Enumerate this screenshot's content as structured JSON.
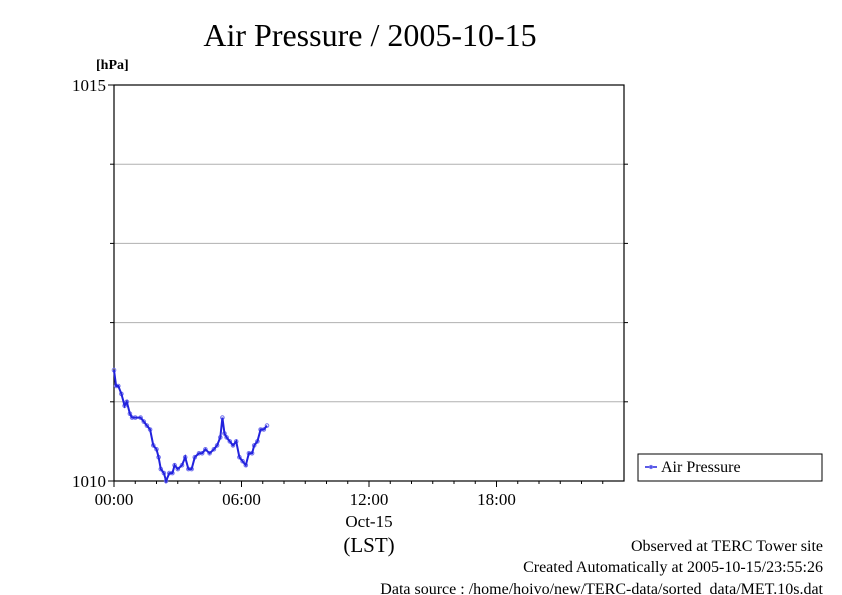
{
  "chart_data": {
    "type": "line",
    "title": "Air Pressure / 2005-10-15",
    "ylabel": "[hPa]",
    "xlabel": "(LST)",
    "date_label": "Oct-15",
    "ylim": [
      1010,
      1015
    ],
    "xlim_hours": [
      0,
      24
    ],
    "y_ticks": [
      {
        "value": 1010,
        "label": "1010"
      },
      {
        "value": 1015,
        "label": "1015"
      }
    ],
    "y_gridlines": [
      1011,
      1012,
      1013,
      1014
    ],
    "x_ticks": [
      {
        "value": 0,
        "label": "00:00"
      },
      {
        "value": 6,
        "label": "06:00"
      },
      {
        "value": 12,
        "label": "12:00"
      },
      {
        "value": 18,
        "label": "18:00"
      }
    ],
    "grid": "horizontal",
    "legend": {
      "position": "right",
      "entries": [
        "Air Pressure"
      ]
    },
    "colors": {
      "series": "#2222dd",
      "points": "#7070ee",
      "grid": "#b0b0b0"
    },
    "series": [
      {
        "name": "Air Pressure",
        "x": [
          0.0,
          0.1,
          0.2,
          0.35,
          0.5,
          0.6,
          0.75,
          0.85,
          1.0,
          1.25,
          1.4,
          1.55,
          1.7,
          1.85,
          2.0,
          2.1,
          2.2,
          2.35,
          2.45,
          2.6,
          2.75,
          2.85,
          3.0,
          3.2,
          3.35,
          3.5,
          3.65,
          3.8,
          4.0,
          4.15,
          4.3,
          4.5,
          4.7,
          4.85,
          5.0,
          5.1,
          5.2,
          5.3,
          5.45,
          5.6,
          5.75,
          5.9,
          6.05,
          6.2,
          6.35,
          6.5,
          6.6,
          6.75,
          6.9,
          7.05,
          7.2
        ],
        "y": [
          1011.4,
          1011.2,
          1011.2,
          1011.1,
          1010.95,
          1011.0,
          1010.85,
          1010.8,
          1010.8,
          1010.8,
          1010.75,
          1010.7,
          1010.65,
          1010.45,
          1010.4,
          1010.3,
          1010.15,
          1010.1,
          1010.0,
          1010.1,
          1010.1,
          1010.2,
          1010.15,
          1010.2,
          1010.3,
          1010.15,
          1010.15,
          1010.3,
          1010.35,
          1010.35,
          1010.4,
          1010.35,
          1010.4,
          1010.45,
          1010.55,
          1010.8,
          1010.6,
          1010.55,
          1010.5,
          1010.45,
          1010.5,
          1010.3,
          1010.25,
          1010.2,
          1010.35,
          1010.35,
          1010.45,
          1010.5,
          1010.65,
          1010.65,
          1010.7
        ]
      }
    ]
  },
  "footer": {
    "observed": "Observed at TERC Tower site",
    "created": "Created Automatically at 2005-10-15/23:55:26",
    "source": "Data source : /home/hoivo/new/TERC-data/sorted_data/MET.10s.dat"
  }
}
